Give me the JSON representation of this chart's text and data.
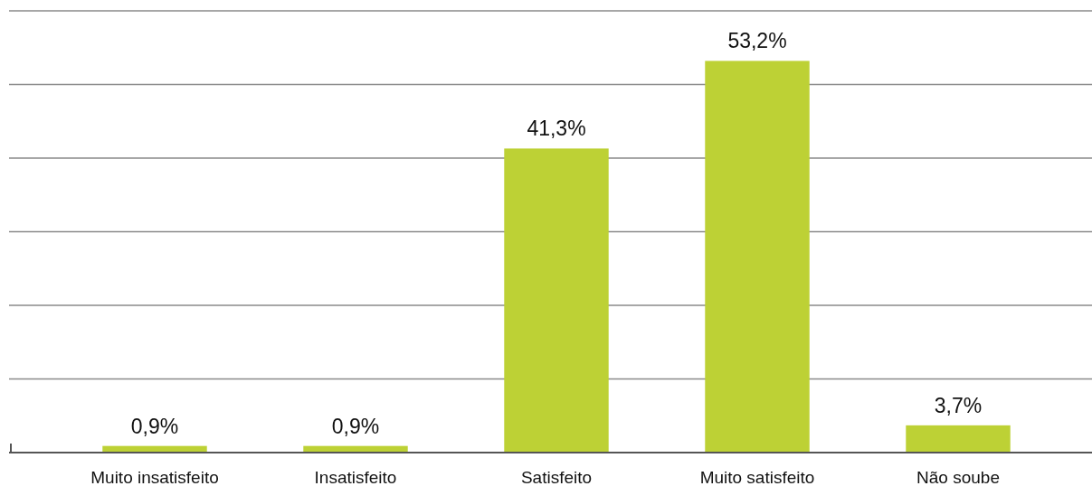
{
  "chart_data": {
    "type": "bar",
    "categories": [
      "Muito insatisfeito",
      "Insatisfeito",
      "Satisfeito",
      "Muito satisfeito",
      "Não soube"
    ],
    "values": [
      0.9,
      0.9,
      41.3,
      53.2,
      3.7
    ],
    "value_labels": [
      "0,9%",
      "0,9%",
      "41,3%",
      "53,2%",
      "3,7%"
    ],
    "color": "#bdd135",
    "ylim": [
      0,
      60
    ],
    "yticks": [
      {
        "value": 0,
        "label": null
      },
      {
        "value": 10,
        "label": null
      },
      {
        "value": 20,
        "label": null
      },
      {
        "value": 30,
        "label": null
      },
      {
        "value": 40,
        "label": null
      },
      {
        "value": 50,
        "label": null
      },
      {
        "value": 60,
        "label": null
      }
    ],
    "grid": "y",
    "tick_labels": "x"
  }
}
